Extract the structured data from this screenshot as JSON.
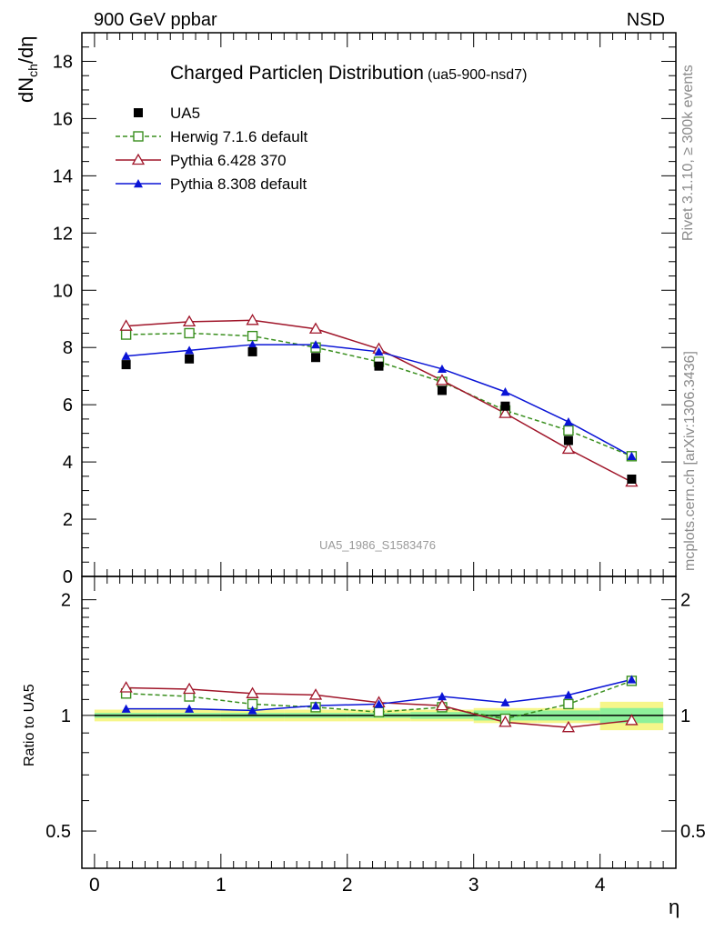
{
  "header": {
    "left": "900 GeV ppbar",
    "right": "NSD"
  },
  "side_labels": {
    "top": "Rivet 3.1.10, ≥ 300k events",
    "bottom": "mcplots.cern.ch [arXiv:1306.3436]"
  },
  "chart_data": {
    "type": "line",
    "title": "Charged Particle",
    "title_symbol": "η",
    "title_rest": " Distribution",
    "title_tag": "(ua5-900-nsd7)",
    "watermark": "UA5_1986_S1583476",
    "xlabel": "η",
    "ylabel": "dN_ch/dη",
    "ylabel_parts": [
      "dN",
      "ch",
      "/dη"
    ],
    "ratio_ylabel": "Ratio to UA5",
    "xlim": [
      -0.1,
      4.6
    ],
    "ylim": [
      0,
      19
    ],
    "ratio_ylim": [
      0.4,
      2.3
    ],
    "x": [
      0.25,
      0.75,
      1.25,
      1.75,
      2.25,
      2.75,
      3.25,
      3.75,
      4.25
    ],
    "xticks": [
      "0",
      "1",
      "2",
      "3",
      "4"
    ],
    "yticks": [
      "0",
      "2",
      "4",
      "6",
      "8",
      "10",
      "12",
      "14",
      "16",
      "18"
    ],
    "ratio_yticks": [
      "0.5",
      "1",
      "2"
    ],
    "legend_position": "top-left",
    "series": [
      {
        "name": "UA5",
        "color": "#000000",
        "marker": "square-filled",
        "line": "none",
        "values": [
          7.4,
          7.6,
          7.85,
          7.65,
          7.35,
          6.5,
          5.95,
          4.75,
          3.4
        ],
        "ratio": [
          1.0,
          1.0,
          1.0,
          1.0,
          1.0,
          1.0,
          1.0,
          1.0,
          1.0
        ]
      },
      {
        "name": "Herwig 7.1.6 default",
        "color": "#3a8f1f",
        "marker": "square-open",
        "line": "dashed",
        "values": [
          8.45,
          8.5,
          8.4,
          8.0,
          7.5,
          6.8,
          5.8,
          5.1,
          4.2
        ],
        "ratio": [
          1.14,
          1.12,
          1.07,
          1.05,
          1.02,
          1.05,
          0.98,
          1.07,
          1.23
        ]
      },
      {
        "name": "Pythia 6.428 370",
        "color": "#a0162a",
        "marker": "triangle-open",
        "line": "solid",
        "values": [
          8.75,
          8.9,
          8.95,
          8.65,
          7.95,
          6.85,
          5.7,
          4.45,
          3.3
        ],
        "ratio": [
          1.18,
          1.17,
          1.14,
          1.13,
          1.08,
          1.06,
          0.96,
          0.93,
          0.97
        ]
      },
      {
        "name": "Pythia 8.308 default",
        "color": "#0a14d6",
        "marker": "triangle-filled",
        "line": "solid",
        "values": [
          7.7,
          7.9,
          8.1,
          8.1,
          7.85,
          7.25,
          6.45,
          5.4,
          4.2
        ],
        "ratio": [
          1.04,
          1.04,
          1.03,
          1.06,
          1.07,
          1.12,
          1.08,
          1.13,
          1.24
        ]
      }
    ],
    "ratio_band": {
      "edges": [
        0.0,
        0.5,
        1.0,
        1.5,
        2.0,
        2.5,
        3.0,
        3.5,
        4.0,
        4.5
      ],
      "inner": [
        0.015,
        0.015,
        0.015,
        0.015,
        0.015,
        0.02,
        0.03,
        0.03,
        0.045
      ],
      "outer": [
        0.035,
        0.035,
        0.035,
        0.035,
        0.035,
        0.035,
        0.045,
        0.045,
        0.085
      ],
      "inner_color": "#8ef09a",
      "outer_color": "#f6f68a"
    }
  }
}
